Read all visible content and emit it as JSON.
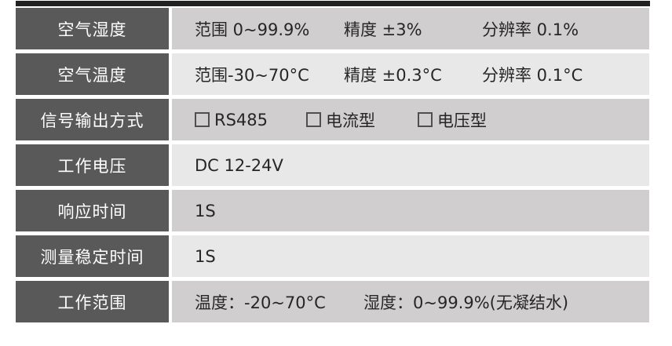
{
  "colors": {
    "top_bar": "#212121",
    "label_bg": "#595959",
    "label_text": "#ffffff",
    "value_bg_dark": "#d0cece",
    "value_bg_light": "#e9e8e8",
    "value_text": "#262626",
    "checkbox_border": "#4f4f4f",
    "page_bg": "#ffffff"
  },
  "table": {
    "rows": [
      {
        "label": "空气湿度",
        "segments": [
          "范围 0~99.9%",
          "精度 ±3%",
          "分辨率 0.1%"
        ]
      },
      {
        "label": "空气温度",
        "segments": [
          "范围-30~70°C",
          "精度 ±0.3°C",
          "分辨率 0.1°C"
        ]
      },
      {
        "label": "信号输出方式",
        "options": [
          "RS485",
          "电流型",
          "电压型"
        ]
      },
      {
        "label": "工作电压",
        "segments": [
          "DC 12-24V"
        ]
      },
      {
        "label": "响应时间",
        "segments": [
          "1S"
        ]
      },
      {
        "label": "测量稳定时间",
        "segments": [
          "1S"
        ]
      },
      {
        "label": "工作范围",
        "segments": [
          "温度：-20~70°C",
          "湿度：0~99.9%(无凝结水)"
        ]
      }
    ]
  }
}
